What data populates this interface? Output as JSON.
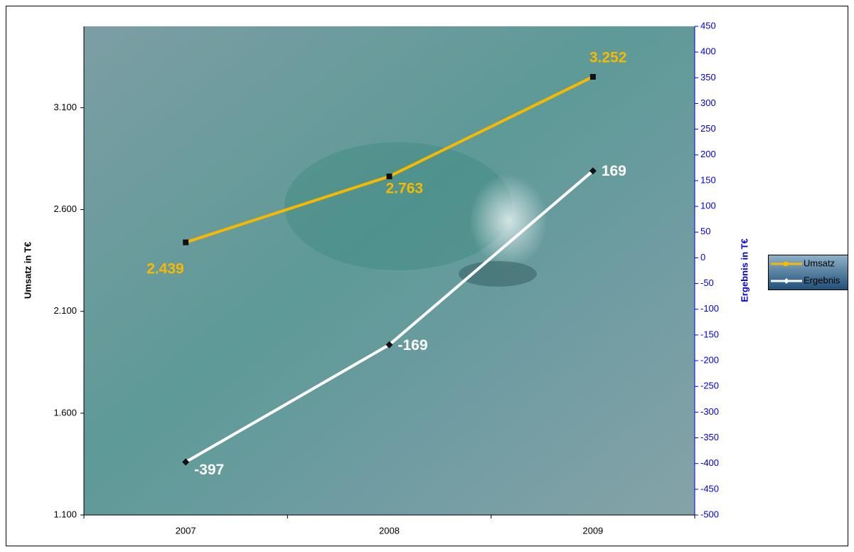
{
  "chart_data": {
    "type": "line",
    "categories": [
      "2007",
      "2008",
      "2009"
    ],
    "y_label": "Umsatz in T€",
    "y2_label": "Ergebnis in T€",
    "ylim": [
      1100,
      3500
    ],
    "yticks": [
      {
        "value": 1100,
        "label": "1.100"
      },
      {
        "value": 1600,
        "label": "1.600"
      },
      {
        "value": 2100,
        "label": "2.100"
      },
      {
        "value": 2600,
        "label": "2.600"
      },
      {
        "value": 3100,
        "label": "3.100"
      }
    ],
    "y2lim": [
      -500,
      450
    ],
    "y2ticks": [
      -500,
      -450,
      -400,
      -350,
      -300,
      -250,
      -200,
      -150,
      -100,
      -50,
      0,
      50,
      100,
      150,
      200,
      250,
      300,
      350,
      400,
      450
    ],
    "legend": "right",
    "series": [
      {
        "name": "Umsatz",
        "color": "#f7b900",
        "values": [
          2439,
          2763,
          3252
        ],
        "value_labels": [
          "2.439",
          "2.763",
          "3.252"
        ]
      },
      {
        "name": "Ergebnis",
        "color": "#ffffff",
        "axis": "y2",
        "values": [
          -397,
          -169,
          169
        ]
      }
    ]
  }
}
